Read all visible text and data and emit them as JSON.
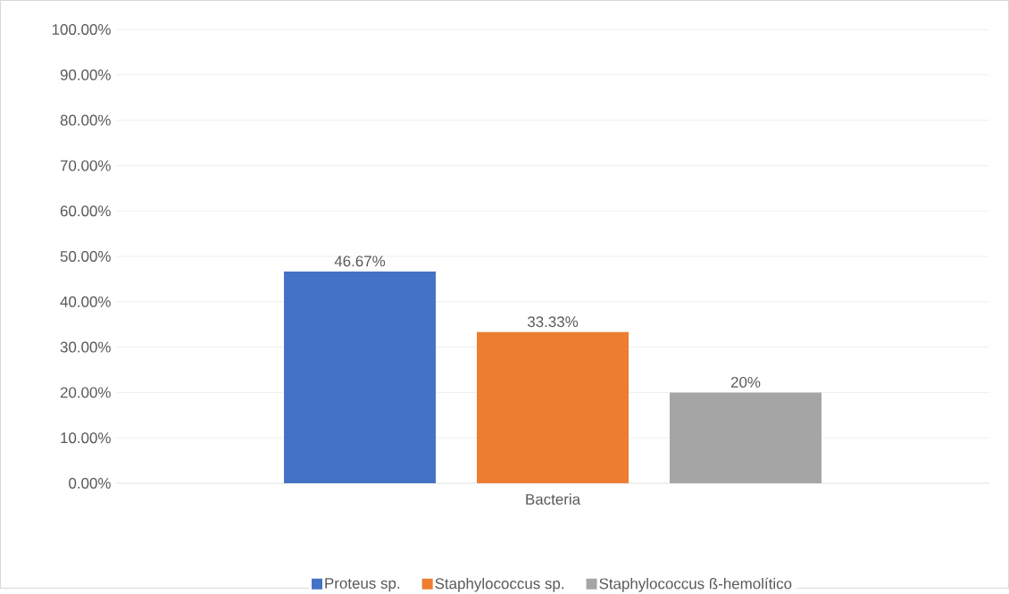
{
  "chart_data": {
    "type": "bar",
    "categories": [
      "Bacteria"
    ],
    "series": [
      {
        "name": "Proteus sp.",
        "color": "#4472c4",
        "values": [
          46.67
        ],
        "value_labels": [
          "46.67%"
        ]
      },
      {
        "name": "Staphylococcus sp.",
        "color": "#ed7d31",
        "values": [
          33.33
        ],
        "value_labels": [
          "33.33%"
        ]
      },
      {
        "name": "Staphylococcus ß-hemolítico",
        "color": "#a5a5a5",
        "values": [
          20
        ],
        "value_labels": [
          "20%"
        ]
      }
    ],
    "ylim": [
      0,
      100
    ],
    "yticks": [
      {
        "value": 0,
        "label": "0.00%"
      },
      {
        "value": 10,
        "label": "10.00%"
      },
      {
        "value": 20,
        "label": "20.00%"
      },
      {
        "value": 30,
        "label": "30.00%"
      },
      {
        "value": 40,
        "label": "40.00%"
      },
      {
        "value": 50,
        "label": "50.00%"
      },
      {
        "value": 60,
        "label": "60.00%"
      },
      {
        "value": 70,
        "label": "70.00%"
      },
      {
        "value": 80,
        "label": "80.00%"
      },
      {
        "value": 90,
        "label": "90.00%"
      },
      {
        "value": 100,
        "label": "100.00%"
      }
    ],
    "grid": "y",
    "legend": "bottom"
  }
}
